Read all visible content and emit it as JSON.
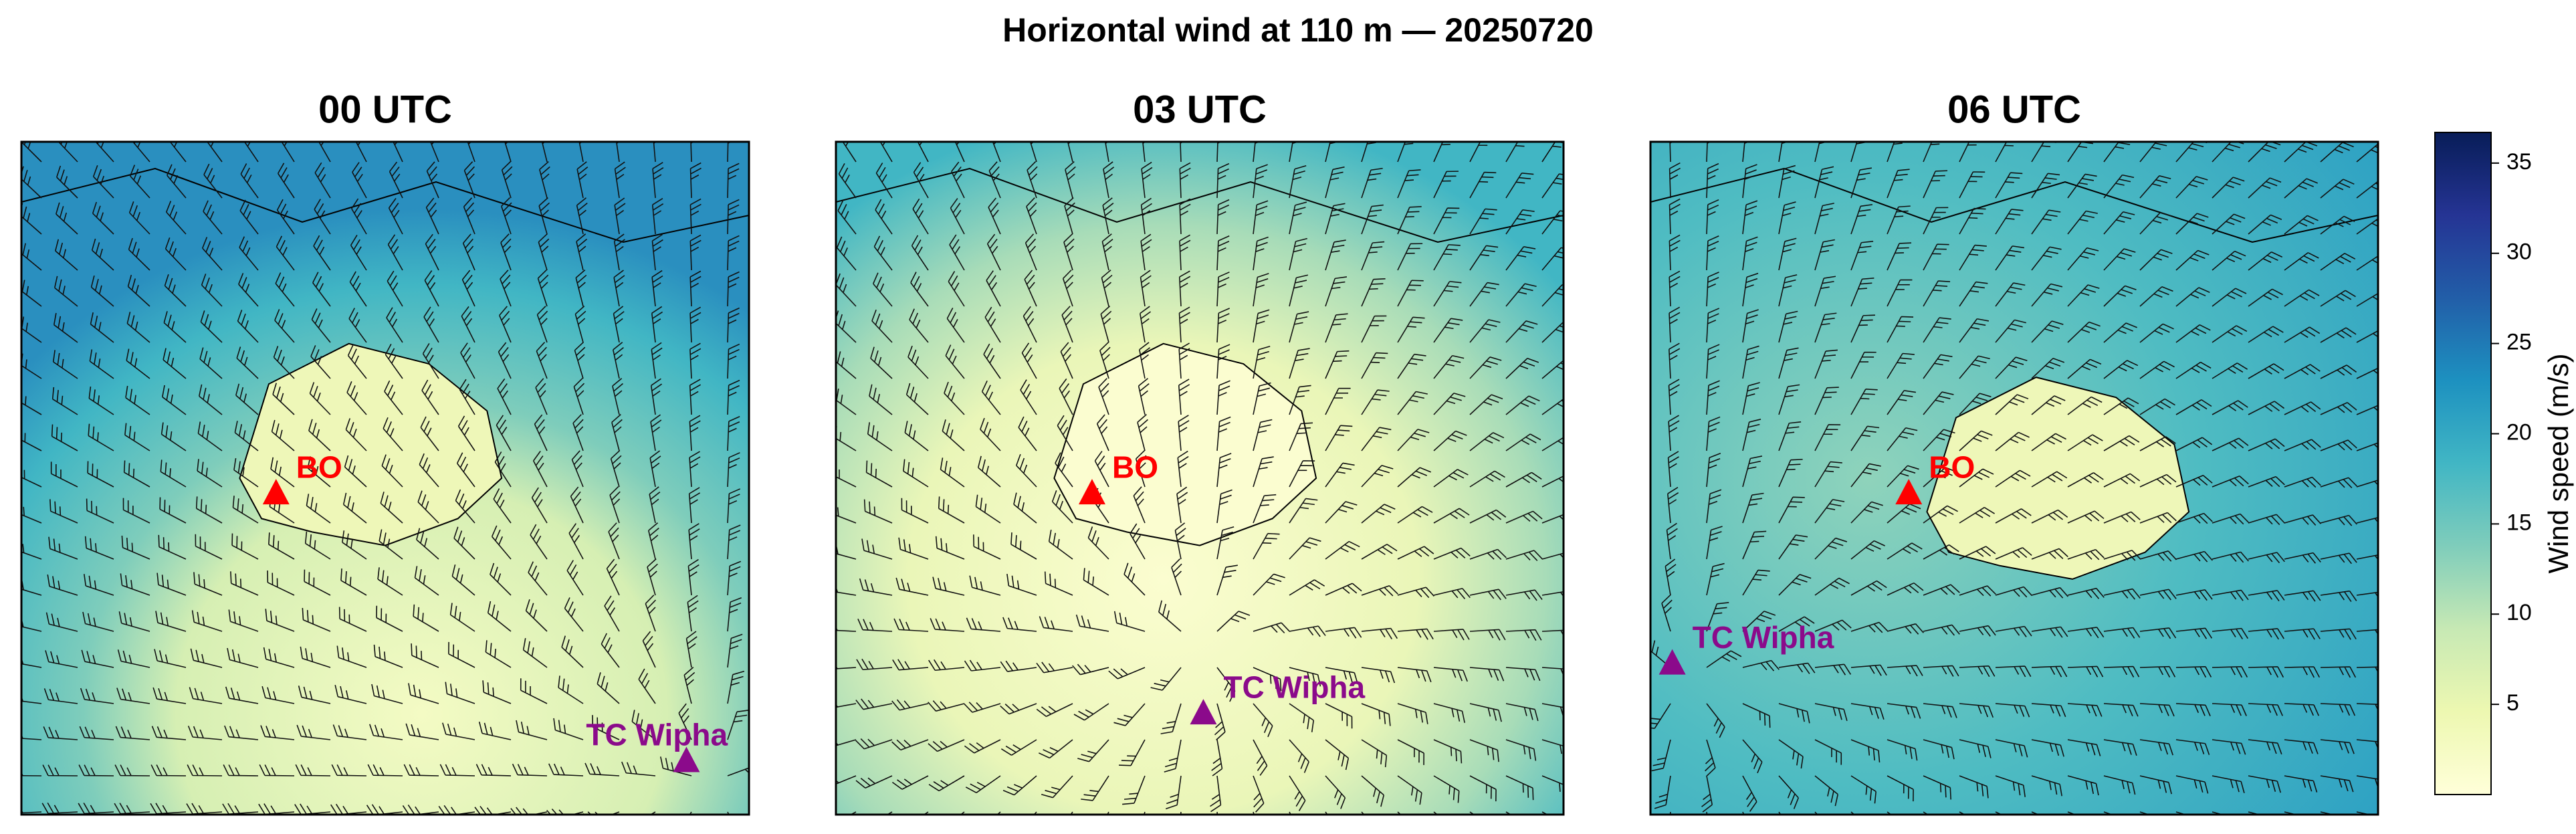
{
  "title": "Horizontal wind at 110 m — 20250720",
  "panels": [
    {
      "title": "00 UTC",
      "markers": [
        {
          "label": "BO",
          "color": "#ff0000"
        },
        {
          "label": "TC Wipha",
          "color": "#8b0a8b"
        }
      ]
    },
    {
      "title": "03 UTC",
      "markers": [
        {
          "label": "BO",
          "color": "#ff0000"
        },
        {
          "label": "TC Wipha",
          "color": "#8b0a8b"
        }
      ]
    },
    {
      "title": "06 UTC",
      "markers": [
        {
          "label": "BO",
          "color": "#ff0000"
        },
        {
          "label": "TC Wipha",
          "color": "#8b0a8b"
        }
      ]
    }
  ],
  "colorbar": {
    "label": "Wind speed (m/s)",
    "ylim": [
      0,
      36.7
    ],
    "yticks": [
      5,
      10,
      15,
      20,
      25,
      30,
      35
    ]
  }
}
